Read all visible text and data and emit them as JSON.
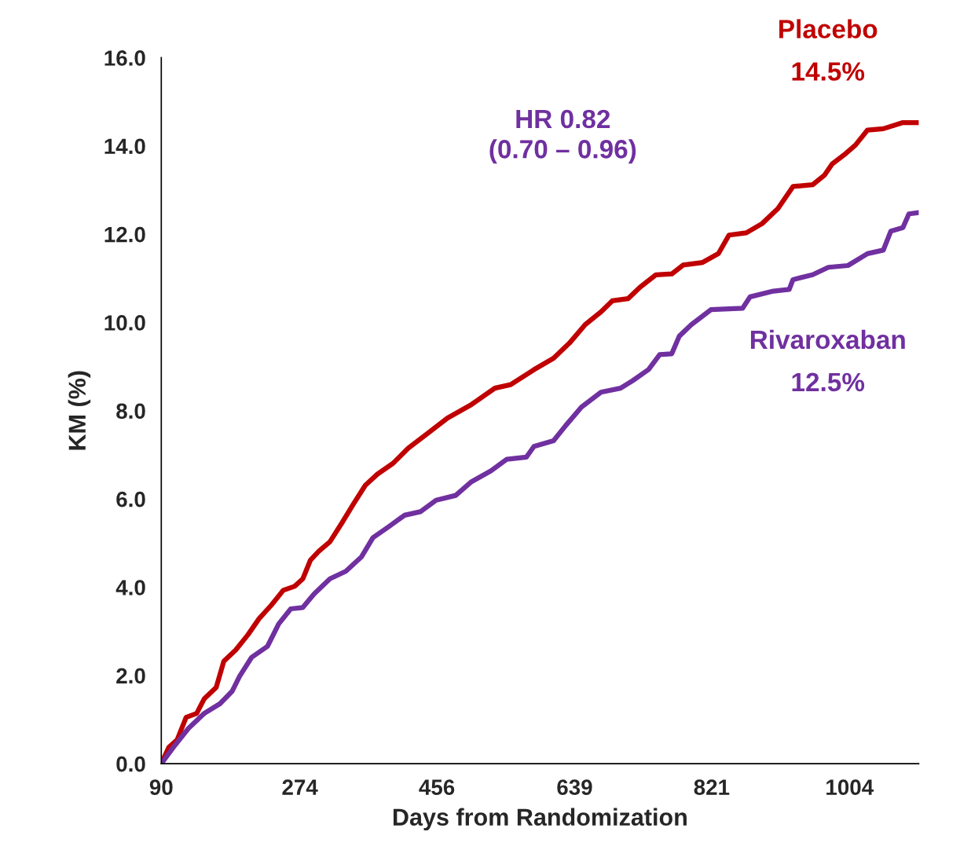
{
  "chart_data": {
    "type": "line",
    "xlabel": "Days from Randomization",
    "ylabel": "KM (%)",
    "xlim": [
      90,
      1096
    ],
    "xticks": [
      90,
      274,
      456,
      639,
      821,
      1004
    ],
    "ylim": [
      0,
      16
    ],
    "yticks": [
      {
        "value": 0,
        "label": "0.0"
      },
      {
        "value": 2,
        "label": "2.0"
      },
      {
        "value": 4,
        "label": "4.0"
      },
      {
        "value": 6,
        "label": "6.0"
      },
      {
        "value": 8,
        "label": "8.0"
      },
      {
        "value": 10,
        "label": "10.0"
      },
      {
        "value": 12,
        "label": "12.0"
      },
      {
        "value": 14,
        "label": "14.0"
      },
      {
        "value": 16,
        "label": "16.0"
      }
    ],
    "grid": false,
    "legend": false,
    "annotations": [
      "HR 0.82\n(0.70 – 0.96)",
      "14.5%",
      "12.5%"
    ],
    "series": [
      {
        "name": "Placebo",
        "color": "#c00000",
        "x": [
          90,
          100,
          111,
          123,
          137,
          147,
          163,
          173,
          189,
          205,
          220,
          236,
          252,
          267,
          278,
          288,
          299,
          314,
          330,
          345,
          361,
          377,
          398,
          418,
          444,
          470,
          502,
          533,
          554,
          585,
          611,
          632,
          653,
          674,
          689,
          710,
          726,
          747,
          768,
          783,
          809,
          830,
          844,
          867,
          888,
          909,
          929,
          955,
          971,
          981,
          997,
          1012,
          1028,
          1049,
          1075,
          1096
        ],
        "values": [
          0,
          0.37,
          0.54,
          1.05,
          1.14,
          1.47,
          1.73,
          2.32,
          2.58,
          2.92,
          3.29,
          3.59,
          3.93,
          4.02,
          4.19,
          4.61,
          4.81,
          5.03,
          5.46,
          5.88,
          6.31,
          6.56,
          6.81,
          7.15,
          7.49,
          7.83,
          8.14,
          8.51,
          8.59,
          8.93,
          9.19,
          9.53,
          9.95,
          10.24,
          10.49,
          10.54,
          10.8,
          11.08,
          11.1,
          11.3,
          11.36,
          11.56,
          11.98,
          12.03,
          12.24,
          12.58,
          13.08,
          13.12,
          13.34,
          13.59,
          13.8,
          14.02,
          14.36,
          14.39,
          14.53,
          14.53
        ]
      },
      {
        "name": "Rivaroxaban",
        "color": "#7030a0",
        "x": [
          90,
          106,
          126,
          147,
          168,
          184,
          194,
          210,
          231,
          246,
          262,
          278,
          293,
          314,
          335,
          356,
          371,
          392,
          413,
          434,
          455,
          481,
          502,
          528,
          549,
          575,
          585,
          611,
          627,
          648,
          674,
          700,
          716,
          737,
          752,
          768,
          778,
          794,
          820,
          862,
          872,
          903,
          924,
          929,
          955,
          976,
          1002,
          1028,
          1049,
          1059,
          1075,
          1083,
          1096
        ],
        "values": [
          0,
          0.37,
          0.8,
          1.14,
          1.36,
          1.64,
          1.98,
          2.41,
          2.66,
          3.17,
          3.51,
          3.54,
          3.85,
          4.19,
          4.36,
          4.69,
          5.12,
          5.37,
          5.63,
          5.71,
          5.97,
          6.08,
          6.39,
          6.64,
          6.9,
          6.95,
          7.19,
          7.32,
          7.66,
          8.08,
          8.42,
          8.51,
          8.68,
          8.93,
          9.27,
          9.29,
          9.69,
          9.95,
          10.29,
          10.32,
          10.58,
          10.71,
          10.75,
          10.97,
          11.08,
          11.25,
          11.29,
          11.56,
          11.64,
          12.07,
          12.15,
          12.46,
          12.49
        ]
      }
    ]
  }
}
